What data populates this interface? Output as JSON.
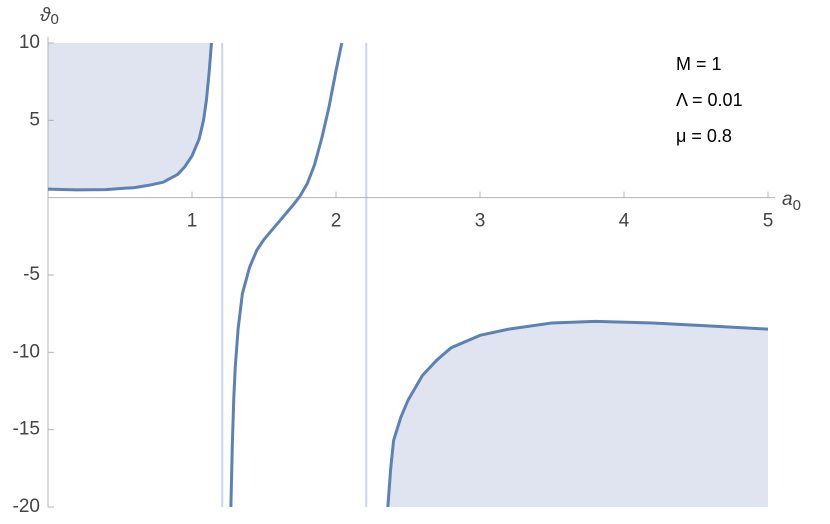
{
  "chart_data": {
    "type": "line",
    "x_label": {
      "symbol": "a",
      "subscript": "0"
    },
    "y_label": {
      "symbol": "ϑ",
      "subscript": "0"
    },
    "annotations": [
      "M = 1",
      "Λ = 0.01",
      "μ = 0.8"
    ],
    "xlim": [
      0,
      5
    ],
    "ylim": [
      -20,
      10
    ],
    "xticks": [
      1,
      2,
      3,
      4,
      5
    ],
    "yticks": [
      -20,
      -15,
      -10,
      -5,
      5,
      10
    ],
    "asymptotes": [
      1.21,
      2.21
    ],
    "fill_color": "#dfe4f0",
    "asymptote_color": "#c9d5ea",
    "series": [
      {
        "color": "#5e81b5",
        "fill": "above",
        "x": [
          0,
          0.2,
          0.4,
          0.6,
          0.7,
          0.8,
          0.9,
          0.95,
          1.0,
          1.05,
          1.08,
          1.1,
          1.12,
          1.135
        ],
        "values": [
          0.55,
          0.5,
          0.52,
          0.65,
          0.8,
          1.0,
          1.5,
          2.0,
          2.7,
          3.8,
          5.0,
          6.3,
          8.2,
          10
        ]
      },
      {
        "color": "#5e81b5",
        "fill": "none",
        "x": [
          1.27,
          1.28,
          1.29,
          1.3,
          1.32,
          1.35,
          1.4,
          1.45,
          1.5,
          1.6,
          1.7,
          1.75,
          1.8,
          1.85,
          1.9,
          1.95,
          2.0,
          2.04
        ],
        "values": [
          -20,
          -16,
          -13,
          -11,
          -8.5,
          -6.2,
          -4.5,
          -3.4,
          -2.7,
          -1.6,
          -0.5,
          0.1,
          0.9,
          2.1,
          3.8,
          5.8,
          8.2,
          10
        ]
      },
      {
        "color": "#5e81b5",
        "fill": "below",
        "x": [
          2.36,
          2.38,
          2.4,
          2.45,
          2.5,
          2.6,
          2.7,
          2.8,
          3.0,
          3.2,
          3.5,
          3.8,
          4.2,
          4.6,
          5
        ],
        "values": [
          -20,
          -17.5,
          -15.7,
          -14.2,
          -13.1,
          -11.5,
          -10.5,
          -9.7,
          -8.9,
          -8.5,
          -8.1,
          -8.0,
          -8.1,
          -8.3,
          -8.5
        ]
      }
    ]
  }
}
